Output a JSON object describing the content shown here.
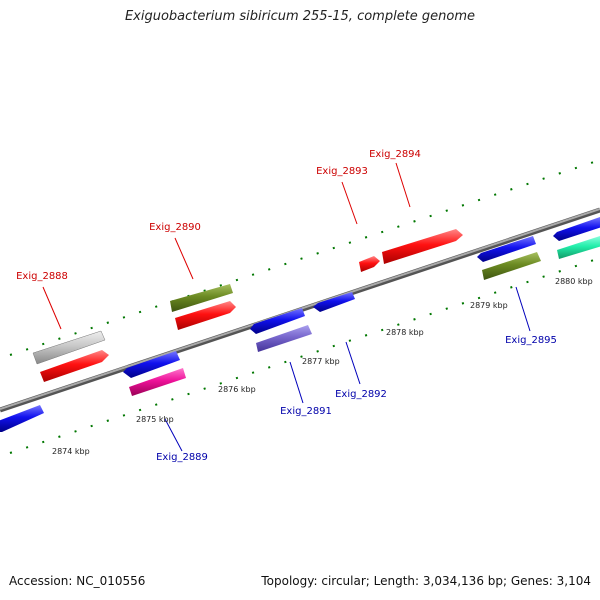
{
  "title": "Exiguobacterium sibiricum 255-15, complete genome",
  "footer": {
    "accession": "Accession: NC_010556",
    "summary": "Topology: circular; Length: 3,034,136 bp; Genes: 3,104"
  },
  "kbp_labels": [
    "2874 kbp",
    "2875 kbp",
    "2876 kbp",
    "2877 kbp",
    "2878 kbp",
    "2879 kbp",
    "2880 kbp"
  ],
  "colors": {
    "forward_label": "#cc0000",
    "reverse_label": "#0000aa",
    "backbone": "#888888",
    "ticks": "#007700"
  },
  "genes": [
    {
      "id": "Exig_2888",
      "strand": "forward",
      "color": "#ff1111"
    },
    {
      "id": "Exig_2889",
      "strand": "reverse",
      "color": "#ee1199"
    },
    {
      "id": "Exig_2890",
      "strand": "forward",
      "color": "#ff1111"
    },
    {
      "id": "Exig_2891",
      "strand": "reverse",
      "color": "#7766cc"
    },
    {
      "id": "Exig_2892",
      "strand": "reverse",
      "color": "#1111ee"
    },
    {
      "id": "Exig_2893",
      "strand": "forward",
      "color": "#ff1111"
    },
    {
      "id": "Exig_2894",
      "strand": "forward",
      "color": "#ff1111"
    },
    {
      "id": "Exig_2895",
      "strand": "reverse",
      "color": "#6b8a22"
    }
  ]
}
